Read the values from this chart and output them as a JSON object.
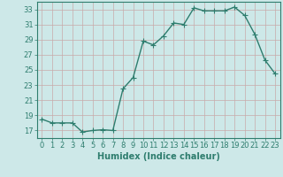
{
  "x": [
    0,
    1,
    2,
    3,
    4,
    5,
    6,
    7,
    8,
    9,
    10,
    11,
    12,
    13,
    14,
    15,
    16,
    17,
    18,
    19,
    20,
    21,
    22,
    23
  ],
  "y": [
    18.5,
    18.0,
    18.0,
    18.0,
    16.8,
    17.0,
    17.1,
    17.0,
    22.5,
    24.0,
    28.8,
    28.3,
    29.5,
    31.2,
    31.0,
    33.2,
    32.8,
    32.8,
    32.8,
    33.3,
    32.2,
    29.7,
    26.3,
    24.5
  ],
  "line_color": "#2e7d6e",
  "marker": "+",
  "marker_size": 4,
  "bg_color": "#cde8e8",
  "grid_color": "#b8d8d8",
  "xlabel": "Humidex (Indice chaleur)",
  "ylim": [
    16,
    34
  ],
  "xlim": [
    -0.5,
    23.5
  ],
  "yticks": [
    17,
    19,
    21,
    23,
    25,
    27,
    29,
    31,
    33
  ],
  "xticks": [
    0,
    1,
    2,
    3,
    4,
    5,
    6,
    7,
    8,
    9,
    10,
    11,
    12,
    13,
    14,
    15,
    16,
    17,
    18,
    19,
    20,
    21,
    22,
    23
  ],
  "tick_color": "#2e7d6e",
  "label_fontsize": 7,
  "tick_fontsize": 6,
  "line_width": 1.0,
  "marker_edge_width": 0.8
}
